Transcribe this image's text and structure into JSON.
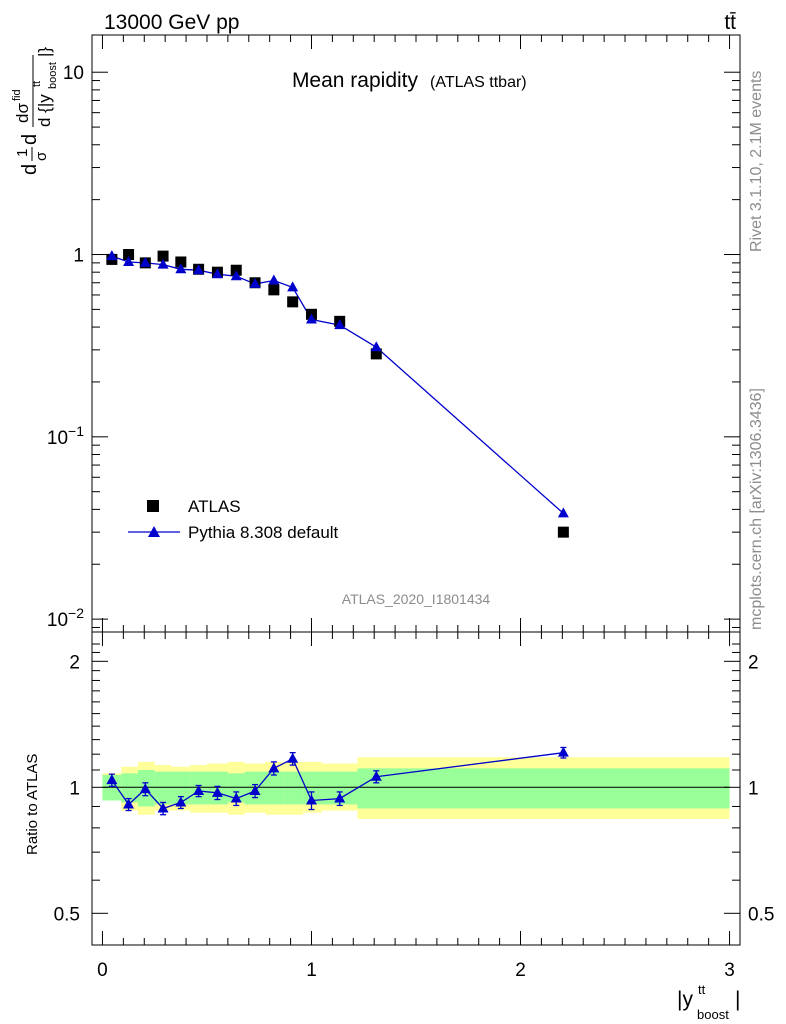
{
  "header": {
    "left": "13000 GeV pp",
    "right": "tt̄"
  },
  "side": {
    "rivet": "Rivet 3.1.10,  2.1M events",
    "mcplots": "mcplots.cern.ch [arXiv:1306.3436]"
  },
  "plot_title": {
    "main": "Mean rapidity",
    "sub": "(ATLAS ttbar)"
  },
  "watermark": "ATLAS_2020_I1801434",
  "legend": {
    "data_label": "ATLAS",
    "mc_label": "Pythia 8.308 default"
  },
  "colors": {
    "data": "#000000",
    "mc": "#0000cc",
    "band_inner": "#99ff99",
    "band_outer": "#ffff99"
  },
  "chart_data": [
    {
      "type": "scatter",
      "panel": "main",
      "y_scale": "log",
      "ylim": [
        0.0085,
        16
      ],
      "xlim": [
        -0.05,
        3.05
      ],
      "ylabel": "1/σ dσ^{fid}/d{|y^{tt}_{boost}|}",
      "y_ticks": [
        {
          "value": 10,
          "label": "10"
        },
        {
          "value": 1,
          "label": "1"
        },
        {
          "value": 0.1,
          "label": "10^{-1}"
        },
        {
          "value": 0.01,
          "label": "10^{-2}"
        }
      ],
      "series": [
        {
          "name": "ATLAS",
          "marker": "square",
          "x": [
            0.045,
            0.125,
            0.205,
            0.29,
            0.375,
            0.46,
            0.55,
            0.64,
            0.73,
            0.82,
            0.91,
            1.0,
            1.135,
            1.31,
            2.205
          ],
          "y": [
            0.94,
            1.0,
            0.9,
            0.98,
            0.91,
            0.83,
            0.8,
            0.82,
            0.7,
            0.64,
            0.55,
            0.47,
            0.43,
            0.285,
            0.03
          ]
        },
        {
          "name": "Pythia 8.308 default",
          "marker": "triangle",
          "x": [
            0.045,
            0.125,
            0.205,
            0.29,
            0.375,
            0.46,
            0.55,
            0.64,
            0.73,
            0.82,
            0.91,
            1.0,
            1.135,
            1.31,
            2.205
          ],
          "y": [
            0.98,
            0.91,
            0.9,
            0.88,
            0.83,
            0.82,
            0.78,
            0.76,
            0.69,
            0.72,
            0.66,
            0.44,
            0.41,
            0.31,
            0.038
          ]
        }
      ]
    },
    {
      "type": "line",
      "panel": "ratio",
      "xlabel": "|y^{tt}_{boost}|",
      "ylabel": "Ratio to ATLAS",
      "ylim": [
        0.42,
        2.35
      ],
      "xlim": [
        -0.05,
        3.05
      ],
      "x_ticks": [
        0,
        1,
        2,
        3
      ],
      "y_ticks": [
        {
          "value": 2,
          "label": "2"
        },
        {
          "value": 1,
          "label": "1"
        },
        {
          "value": 0.5,
          "label": "0.5"
        }
      ],
      "bands": {
        "edges": [
          0,
          0.09,
          0.17,
          0.25,
          0.33,
          0.42,
          0.5,
          0.6,
          0.68,
          0.78,
          0.87,
          0.96,
          1.05,
          1.22,
          1.4,
          3.0
        ],
        "inner_lo": [
          0.93,
          0.92,
          0.9,
          0.91,
          0.91,
          0.91,
          0.91,
          0.92,
          0.91,
          0.91,
          0.91,
          0.91,
          0.91,
          0.89,
          0.89
        ],
        "inner_hi": [
          1.07,
          1.08,
          1.1,
          1.09,
          1.09,
          1.09,
          1.09,
          1.08,
          1.09,
          1.09,
          1.09,
          1.09,
          1.09,
          1.11,
          1.11
        ],
        "outer_lo": [
          0.93,
          0.88,
          0.86,
          0.88,
          0.88,
          0.87,
          0.87,
          0.86,
          0.87,
          0.86,
          0.86,
          0.87,
          0.88,
          0.84,
          0.84
        ],
        "outer_hi": [
          1.08,
          1.12,
          1.15,
          1.13,
          1.12,
          1.13,
          1.14,
          1.15,
          1.14,
          1.15,
          1.15,
          1.15,
          1.14,
          1.18,
          1.18
        ]
      },
      "series": [
        {
          "name": "Pythia 8.308 default",
          "x": [
            0.045,
            0.125,
            0.205,
            0.29,
            0.375,
            0.46,
            0.55,
            0.64,
            0.73,
            0.82,
            0.91,
            1.0,
            1.135,
            1.31,
            2.205
          ],
          "y": [
            1.04,
            0.91,
            0.99,
            0.89,
            0.92,
            0.98,
            0.97,
            0.94,
            0.98,
            1.11,
            1.17,
            0.93,
            0.94,
            1.06,
            1.21
          ],
          "err": [
            0.035,
            0.03,
            0.035,
            0.03,
            0.03,
            0.03,
            0.035,
            0.035,
            0.035,
            0.04,
            0.04,
            0.045,
            0.035,
            0.035,
            0.035
          ]
        }
      ]
    }
  ]
}
